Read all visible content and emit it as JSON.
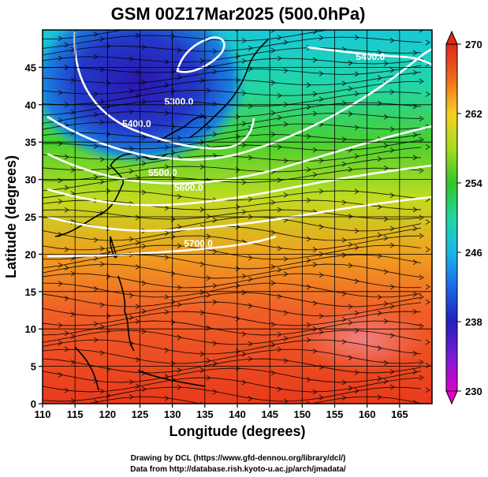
{
  "title": "GSM 00Z17Mar2025 (500.0hPa)",
  "credits": {
    "line1": "Drawing by DCL (https://www.gfd-dennou.org/library/dcl/)",
    "line2": "Data from http://database.rish.kyoto-u.ac.jp/arch/jmadata/"
  },
  "map": {
    "xlabel": "Longitude (degrees)",
    "ylabel": "Latitude  (degrees)",
    "x_ticks": [
      "110",
      "115",
      "120",
      "125",
      "130",
      "135",
      "140",
      "145",
      "150",
      "155",
      "160",
      "165"
    ],
    "y_ticks": [
      "0",
      "5",
      "10",
      "15",
      "20",
      "25",
      "30",
      "35",
      "40",
      "45"
    ],
    "lon_range": [
      110,
      170
    ],
    "lat_range": [
      0,
      50
    ],
    "contours": [
      {
        "label": "5300.0",
        "label_lon": 131.0,
        "label_lat": 40.0
      },
      {
        "label": "5400.0",
        "label_lon": 124.5,
        "label_lat": 37.0
      },
      {
        "label": "5500.0",
        "label_lon": 128.5,
        "label_lat": 30.5
      },
      {
        "label": "5600.0",
        "label_lon": 132.5,
        "label_lat": 28.5
      },
      {
        "label": "5700.0",
        "label_lon": 134.0,
        "label_lat": 21.0
      },
      {
        "label": "5400.0",
        "label_lon": 160.5,
        "label_lat": 46.0
      }
    ]
  },
  "colorbar": {
    "min": 230,
    "max": 270,
    "tick_labels": [
      "230",
      "238",
      "246",
      "254",
      "262",
      "270"
    ]
  }
}
